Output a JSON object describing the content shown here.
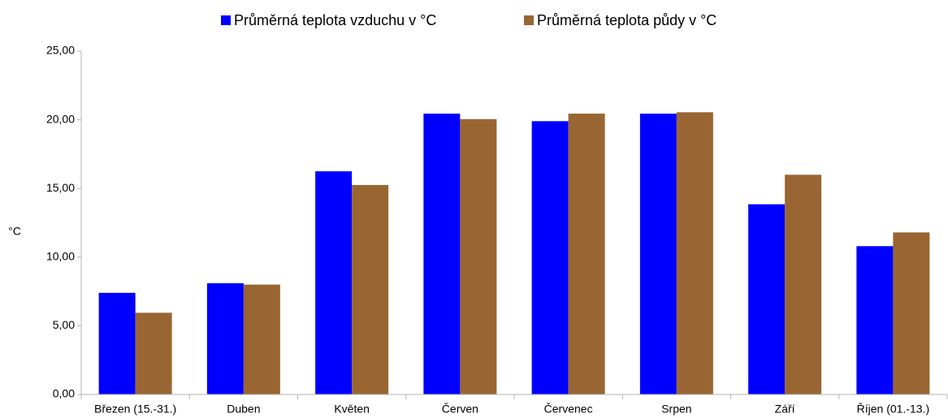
{
  "chart_data": {
    "type": "bar",
    "y_label": "°C",
    "categories": [
      "Březen (15.-31.)",
      "Duben",
      "Květen",
      "Červen",
      "Červenec",
      "Srpen",
      "Září",
      "Říjen (01.-13.)"
    ],
    "series": [
      {
        "name": "Průměrná teplota vzduchu v °C",
        "color": "#0000ff",
        "values": [
          7.4,
          8.1,
          16.25,
          20.45,
          19.9,
          20.45,
          13.85,
          10.8
        ]
      },
      {
        "name": "Průměrná teplota půdy v °C",
        "color": "#996633",
        "values": [
          5.95,
          8.0,
          15.25,
          20.05,
          20.45,
          20.55,
          16.0,
          11.8
        ]
      }
    ],
    "ylim": [
      0,
      25
    ],
    "yticks": [
      {
        "value": 0,
        "label": "0,00"
      },
      {
        "value": 5,
        "label": "5,00"
      },
      {
        "value": 10,
        "label": "10,00"
      },
      {
        "value": 15,
        "label": "15,00"
      },
      {
        "value": 20,
        "label": "20,00"
      },
      {
        "value": 25,
        "label": "25,00"
      }
    ],
    "grid": false
  }
}
